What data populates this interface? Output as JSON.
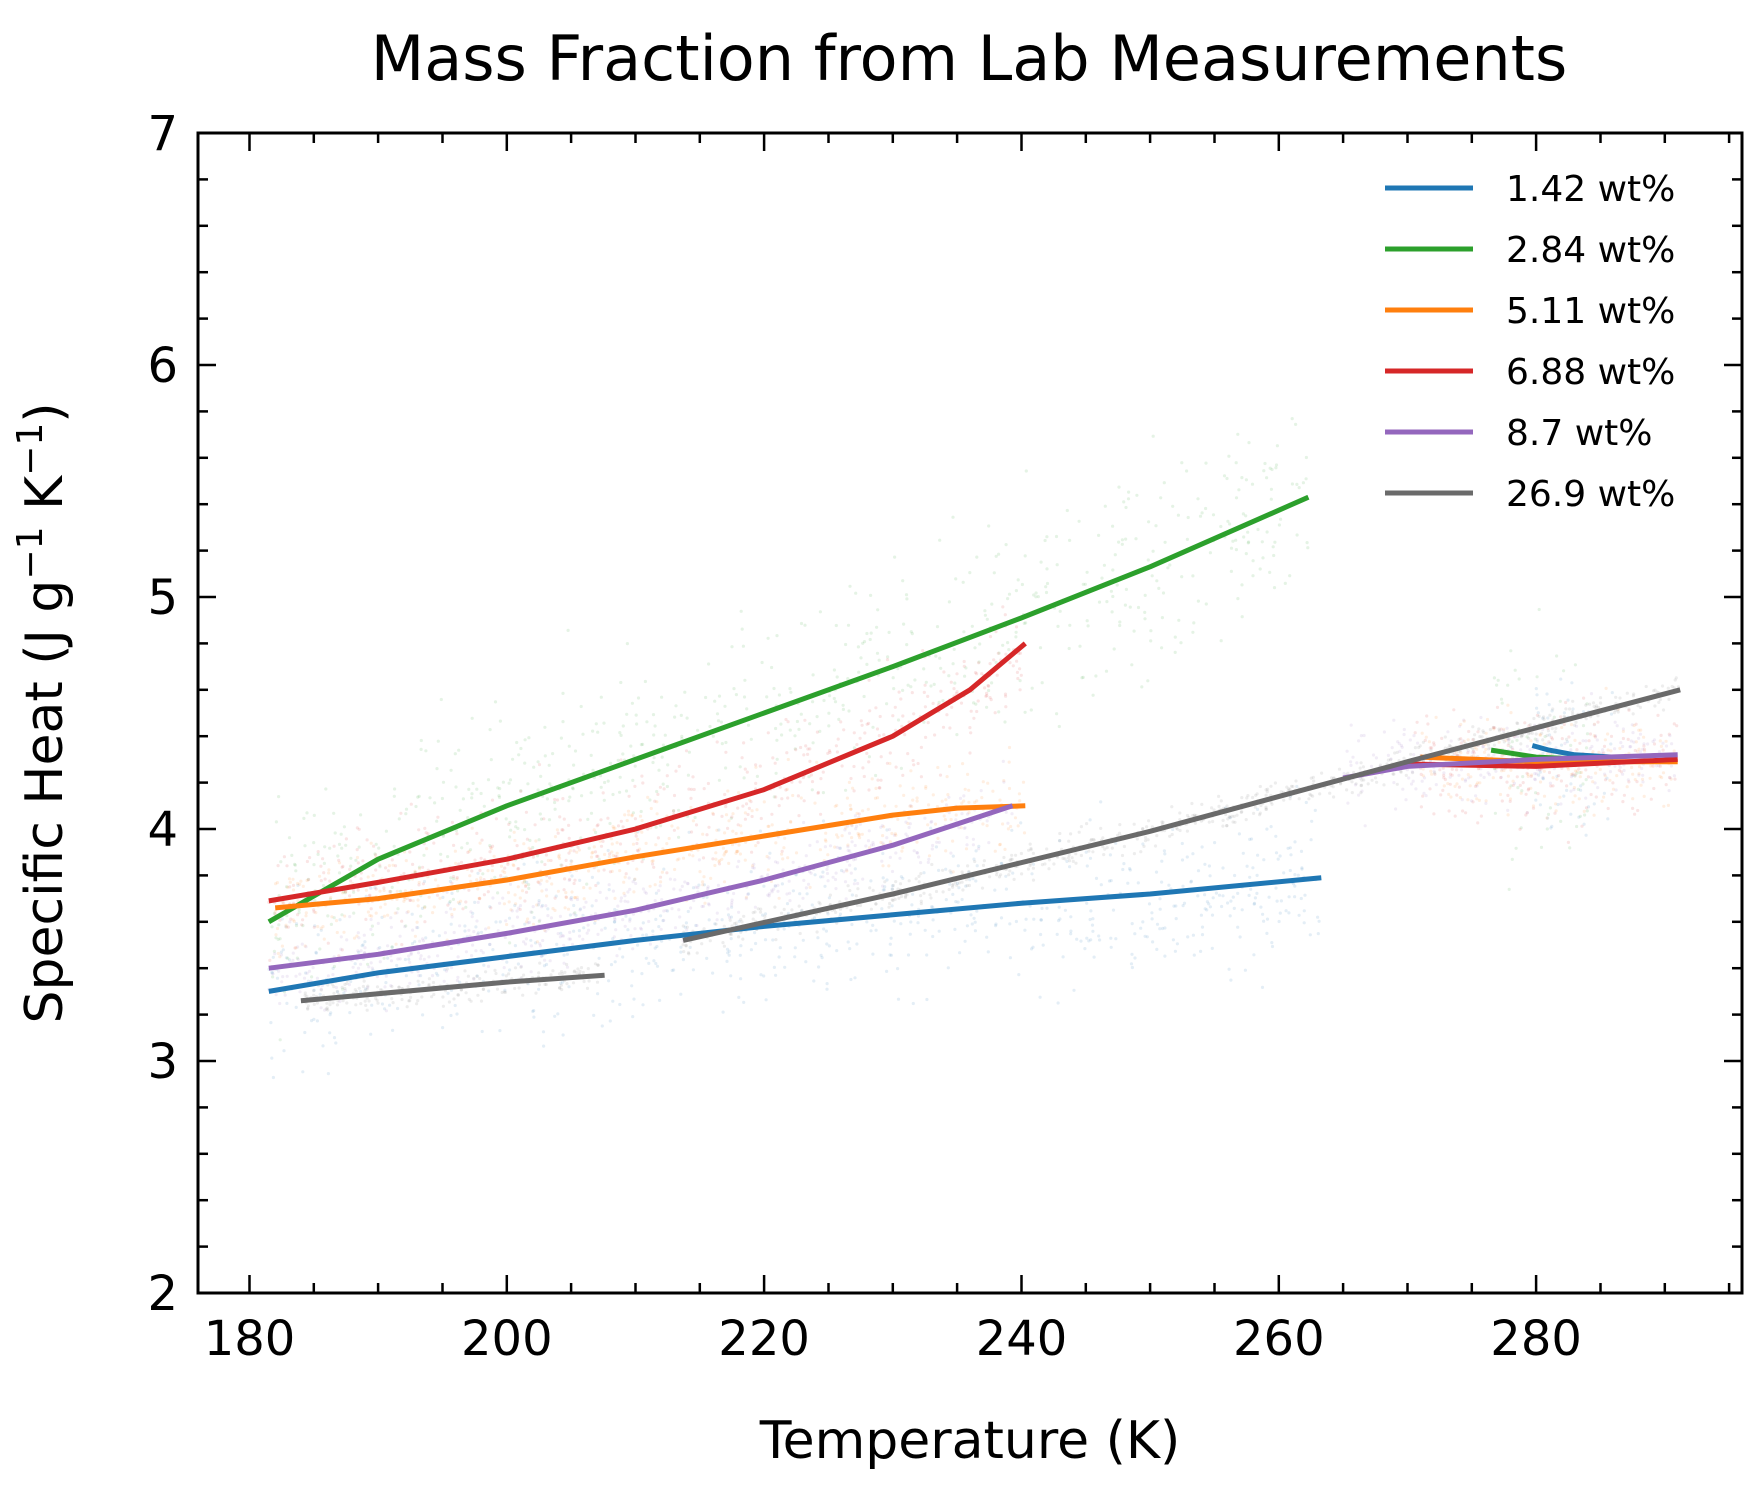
{
  "chart_data": {
    "type": "line",
    "title": "Mass Fraction from Lab Measurements",
    "xlabel": "Temperature (K)",
    "ylabel_parts": [
      "Specific Heat (J g",
      "−1",
      " K",
      "−1",
      ")"
    ],
    "xlim": [
      176,
      296
    ],
    "ylim": [
      2,
      7
    ],
    "x_major_ticks": [
      180,
      200,
      220,
      240,
      260,
      280
    ],
    "x_tick_labels": [
      "180",
      "200",
      "220",
      "240",
      "260",
      "280"
    ],
    "x_minor_step": 5,
    "y_major_ticks": [
      2,
      3,
      4,
      5,
      6,
      7
    ],
    "y_tick_labels": [
      "2",
      "3",
      "4",
      "5",
      "6",
      "7"
    ],
    "y_minor_step": 0.2,
    "legend_position": "top-right",
    "scatter_background": true,
    "series": [
      {
        "name": "1.42 wt%",
        "color": "#1f77b4",
        "segments": [
          [
            [
              181.5,
              3.3
            ],
            [
              190,
              3.38
            ],
            [
              200,
              3.45
            ],
            [
              210,
              3.52
            ],
            [
              220,
              3.58
            ],
            [
              230,
              3.63
            ],
            [
              240,
              3.68
            ],
            [
              250,
              3.72
            ],
            [
              263.3,
              3.79
            ]
          ],
          [
            [
              279.7,
              4.36
            ],
            [
              281,
              4.34
            ],
            [
              283,
              4.32
            ],
            [
              286,
              4.31
            ]
          ]
        ]
      },
      {
        "name": "2.84 wt%",
        "color": "#2ca02c",
        "segments": [
          [
            [
              181.5,
              3.6
            ],
            [
              190,
              3.87
            ],
            [
              200,
              4.1
            ],
            [
              210,
              4.3
            ],
            [
              220,
              4.5
            ],
            [
              230,
              4.7
            ],
            [
              240,
              4.91
            ],
            [
              250,
              5.13
            ],
            [
              262.3,
              5.43
            ]
          ],
          [
            [
              276.5,
              4.34
            ],
            [
              280,
              4.31
            ],
            [
              284,
              4.3
            ]
          ]
        ]
      },
      {
        "name": "5.11 wt%",
        "color": "#ff7f0e",
        "segments": [
          [
            [
              182,
              3.66
            ],
            [
              190,
              3.7
            ],
            [
              200,
              3.78
            ],
            [
              210,
              3.88
            ],
            [
              220,
              3.97
            ],
            [
              230,
              4.06
            ],
            [
              235,
              4.09
            ],
            [
              240.3,
              4.1
            ]
          ],
          [
            [
              271,
              4.31
            ],
            [
              280,
              4.29
            ],
            [
              291,
              4.29
            ]
          ]
        ]
      },
      {
        "name": "6.88 wt%",
        "color": "#d62728",
        "segments": [
          [
            [
              181.5,
              3.69
            ],
            [
              190,
              3.77
            ],
            [
              200,
              3.87
            ],
            [
              210,
              4.0
            ],
            [
              220,
              4.17
            ],
            [
              230,
              4.4
            ],
            [
              236,
              4.6
            ],
            [
              240.3,
              4.8
            ]
          ],
          [
            [
              270,
              4.28
            ],
            [
              280,
              4.27
            ],
            [
              291,
              4.3
            ]
          ]
        ]
      },
      {
        "name": "8.7 wt%",
        "color": "#9467bd",
        "segments": [
          [
            [
              181.5,
              3.4
            ],
            [
              190,
              3.46
            ],
            [
              200,
              3.55
            ],
            [
              210,
              3.65
            ],
            [
              220,
              3.78
            ],
            [
              230,
              3.93
            ],
            [
              239.3,
              4.1
            ]
          ],
          [
            [
              265,
              4.22
            ],
            [
              270,
              4.27
            ],
            [
              280,
              4.3
            ],
            [
              291,
              4.32
            ]
          ]
        ]
      },
      {
        "name": "26.9 wt%",
        "color": "#6a6a6a",
        "segments": [
          [
            [
              184,
              3.26
            ],
            [
              190,
              3.29
            ],
            [
              200,
              3.34
            ],
            [
              207.6,
              3.37
            ]
          ],
          [
            [
              213.7,
              3.52
            ],
            [
              230,
              3.72
            ],
            [
              250,
              3.99
            ],
            [
              270,
              4.29
            ],
            [
              291.2,
              4.6
            ]
          ]
        ]
      }
    ]
  }
}
